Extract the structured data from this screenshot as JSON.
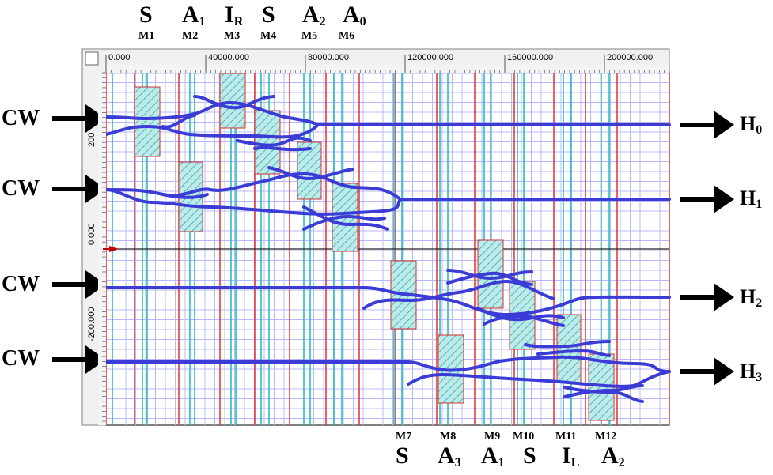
{
  "top_labels": [
    {
      "module": "M1",
      "letter": "S",
      "sub": ""
    },
    {
      "module": "M2",
      "letter": "A",
      "sub": "1"
    },
    {
      "module": "M3",
      "letter": "I",
      "sub": "R"
    },
    {
      "module": "M4",
      "letter": "S",
      "sub": ""
    },
    {
      "module": "M5",
      "letter": "A",
      "sub": "2"
    },
    {
      "module": "M6",
      "letter": "A",
      "sub": "0"
    }
  ],
  "bottom_labels": [
    {
      "module": "M7",
      "letter": "S",
      "sub": ""
    },
    {
      "module": "M8",
      "letter": "A",
      "sub": "3"
    },
    {
      "module": "M9",
      "letter": "A",
      "sub": "1"
    },
    {
      "module": "M10",
      "letter": "S",
      "sub": ""
    },
    {
      "module": "M11",
      "letter": "I",
      "sub": "L"
    },
    {
      "module": "M12",
      "letter": "A",
      "sub": "2"
    }
  ],
  "inputs": [
    "CW",
    "CW",
    "CW",
    "CW"
  ],
  "outputs": [
    {
      "letter": "H",
      "sub": "0"
    },
    {
      "letter": "H",
      "sub": "1"
    },
    {
      "letter": "H",
      "sub": "2"
    },
    {
      "letter": "H",
      "sub": "3"
    }
  ],
  "x_ticks": [
    "0.000",
    "40000.000",
    "80000.000",
    "120000.000",
    "160000.000",
    "200000.000"
  ],
  "y_ticks": [
    "200",
    "0.000",
    "-200.000"
  ],
  "colors": {
    "waveguide": "#3b3bd6",
    "grid_major": "#e03030",
    "grid_minor": "#b8b8ff",
    "electrode": "#20b8b8",
    "arrow": "#000000"
  }
}
